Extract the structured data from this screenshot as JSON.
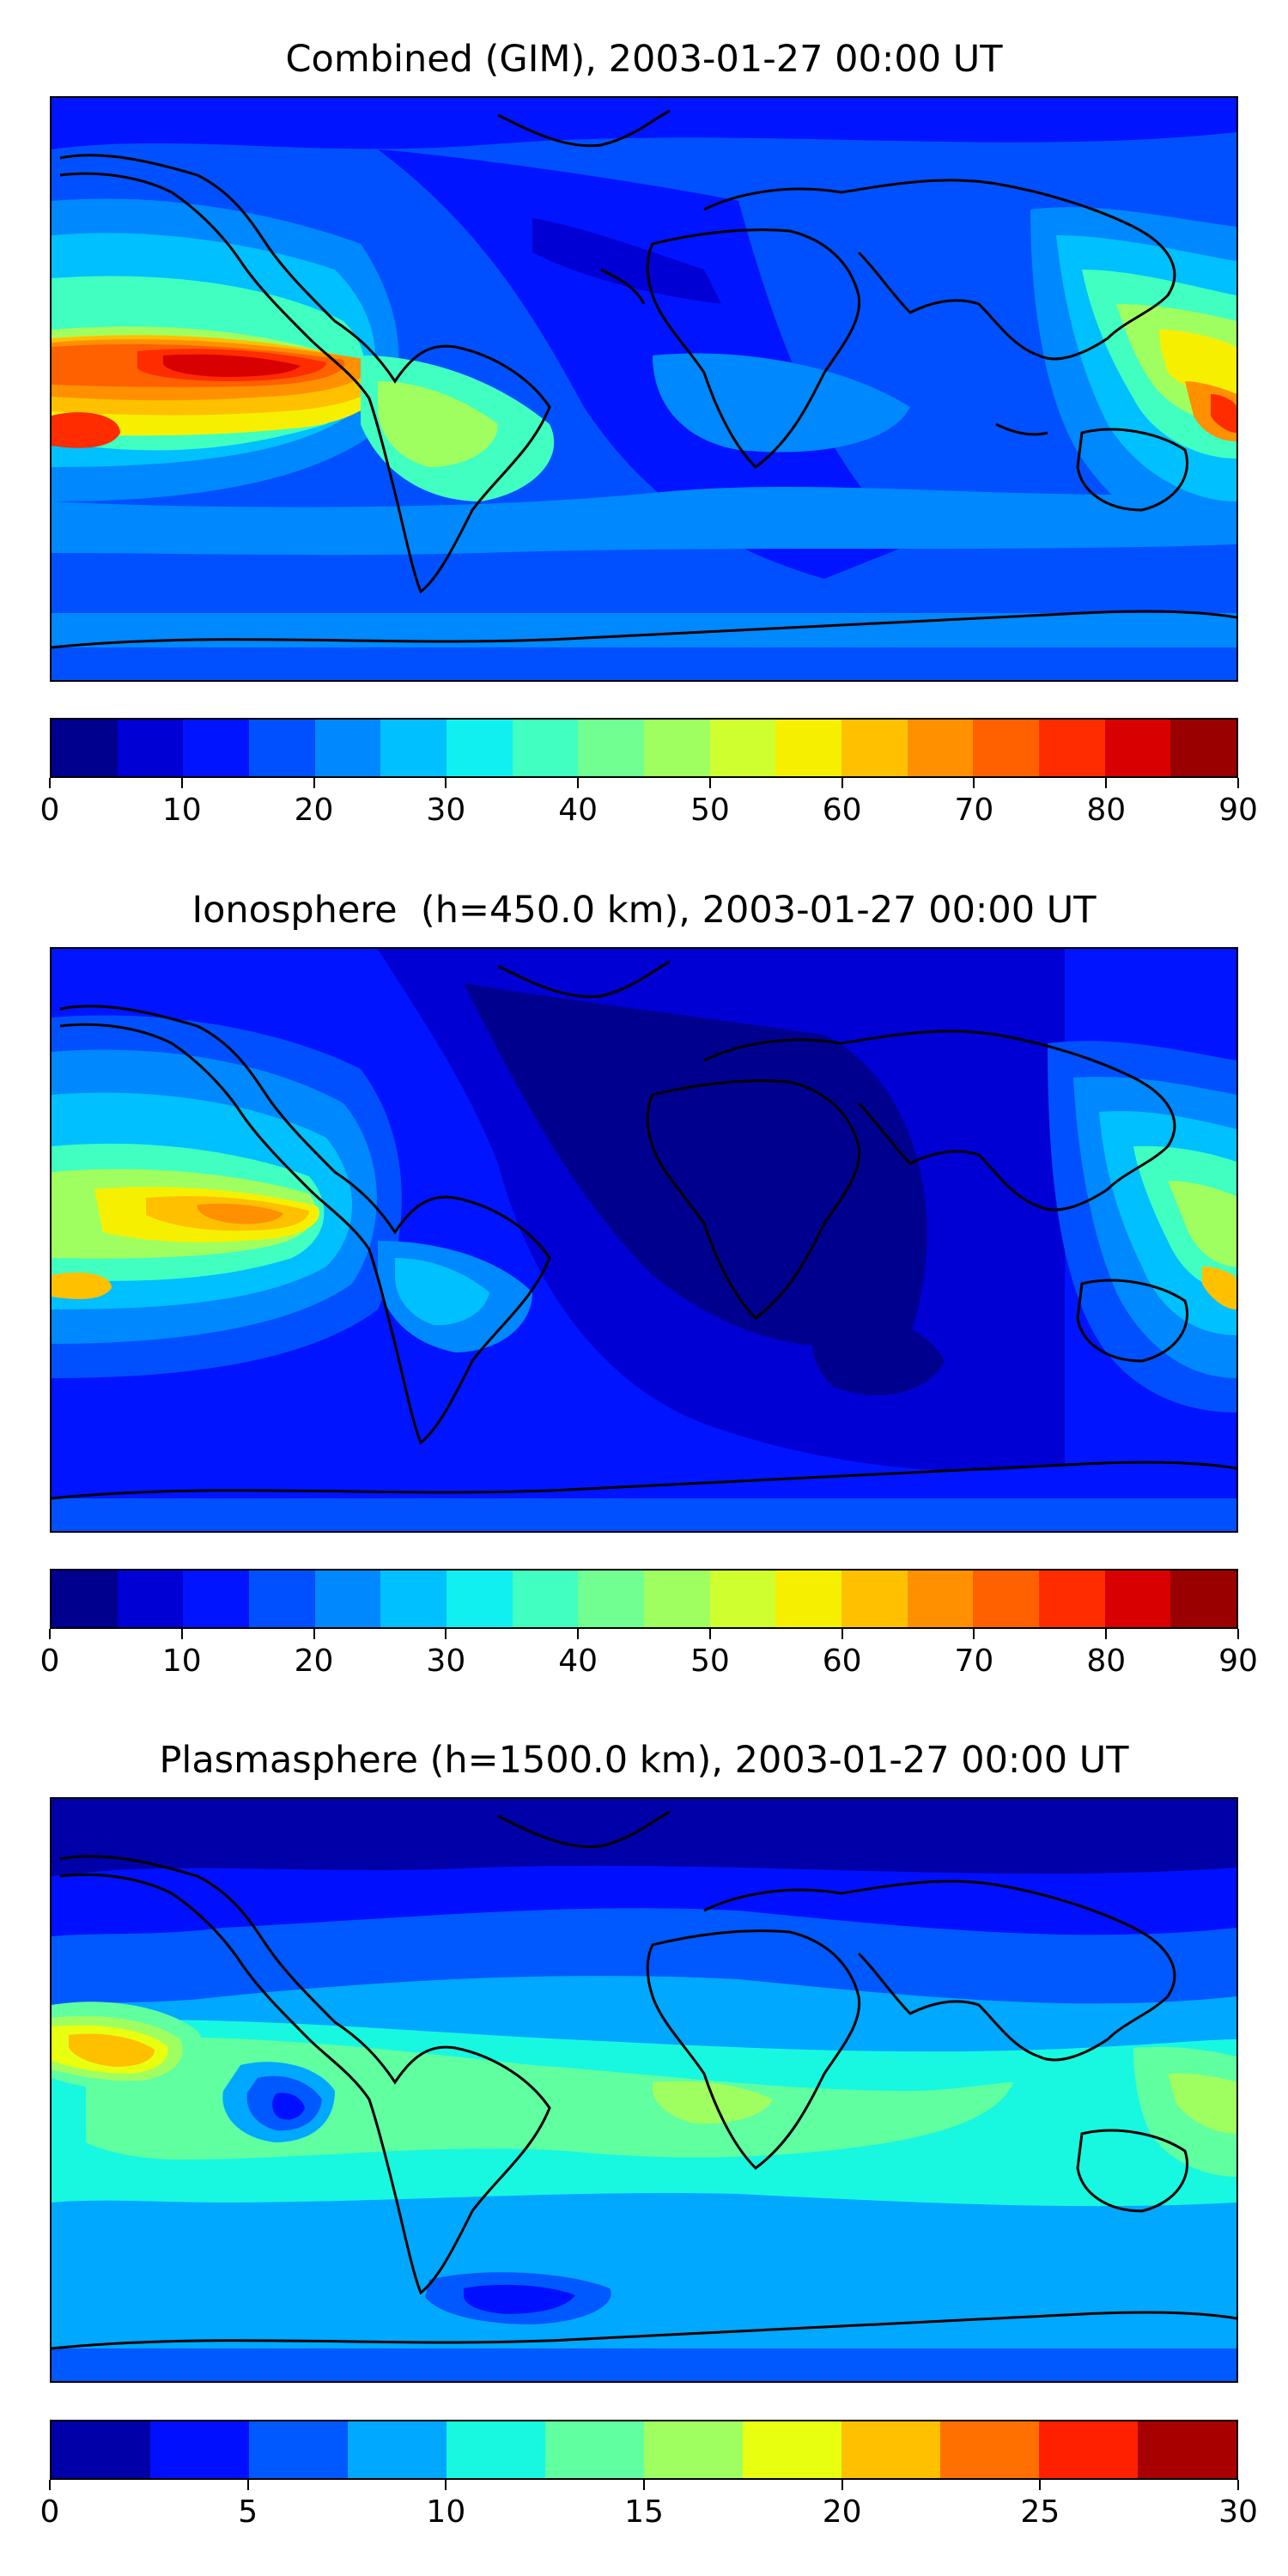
{
  "panels": [
    {
      "title": "Combined (GIM), 2003-01-27 00:00 UT",
      "colorbar": {
        "min": 0,
        "max": 90,
        "tick_labels": [
          "0",
          "10",
          "20",
          "30",
          "40",
          "50",
          "60",
          "70",
          "80",
          "90"
        ],
        "colors": [
          "#00008f",
          "#0000d4",
          "#0014ff",
          "#0050ff",
          "#0088ff",
          "#00c0ff",
          "#10f0f0",
          "#40ffc0",
          "#70ff90",
          "#a0ff60",
          "#d0ff30",
          "#f6f000",
          "#ffc000",
          "#ff9000",
          "#ff6000",
          "#ff2c00",
          "#d80000",
          "#9a0000"
        ]
      }
    },
    {
      "title": "Ionosphere  (h=450.0 km), 2003-01-27 00:00 UT",
      "colorbar": {
        "min": 0,
        "max": 90,
        "tick_labels": [
          "0",
          "10",
          "20",
          "30",
          "40",
          "50",
          "60",
          "70",
          "80",
          "90"
        ],
        "colors": [
          "#00008f",
          "#0000d4",
          "#0014ff",
          "#0050ff",
          "#0088ff",
          "#00c0ff",
          "#10f0f0",
          "#40ffc0",
          "#70ff90",
          "#a0ff60",
          "#d0ff30",
          "#f6f000",
          "#ffc000",
          "#ff9000",
          "#ff6000",
          "#ff2c00",
          "#d80000",
          "#9a0000"
        ]
      }
    },
    {
      "title": "Plasmasphere (h=1500.0 km), 2003-01-27 00:00 UT",
      "colorbar": {
        "min": 0,
        "max": 30,
        "tick_labels": [
          "0",
          "5",
          "10",
          "15",
          "20",
          "25",
          "30"
        ],
        "colors": [
          "#0000a8",
          "#0010ff",
          "#0058ff",
          "#00a8ff",
          "#18f8e0",
          "#60ffa0",
          "#a0ff60",
          "#e8ff10",
          "#ffc000",
          "#ff7000",
          "#ff2000",
          "#a80000"
        ]
      }
    }
  ]
}
